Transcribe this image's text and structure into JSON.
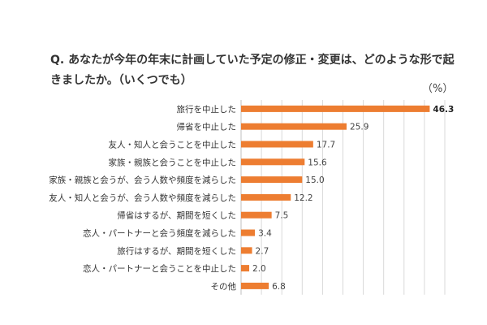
{
  "chart_data": {
    "type": "bar",
    "orientation": "horizontal",
    "title": "Q. あなたが今年の年末に計画していた予定の修正・変更は、どのような形で起きましたか。（いくつでも）",
    "unit_label": "（%）",
    "categories": [
      "旅行を中止した",
      "帰省を中止した",
      "友人・知人と会うことを中止した",
      "家族・親族と会うことを中止した",
      "家族・親族と会うが、会う人数や頻度を減らした",
      "友人・知人と会うが、会う人数や頻度を減らした",
      "帰省はするが、期間を短くした",
      "恋人・パートナーと会う頻度を減らした",
      "旅行はするが、期間を短くした",
      "恋人・パートナーと会うことを中止した",
      "その他"
    ],
    "values": [
      46.3,
      25.9,
      17.7,
      15.6,
      15.0,
      12.2,
      7.5,
      3.4,
      2.7,
      2.0,
      6.8
    ],
    "value_labels": [
      "46.3",
      "25.9",
      "17.7",
      "15.6",
      "15.0",
      "12.2",
      "7.5",
      "3.4",
      "2.7",
      "2.0",
      "6.8"
    ],
    "xlim": [
      0,
      50
    ],
    "grid": true,
    "bar_color": "#ED7D31",
    "grid_color": "#D9D9D9"
  }
}
